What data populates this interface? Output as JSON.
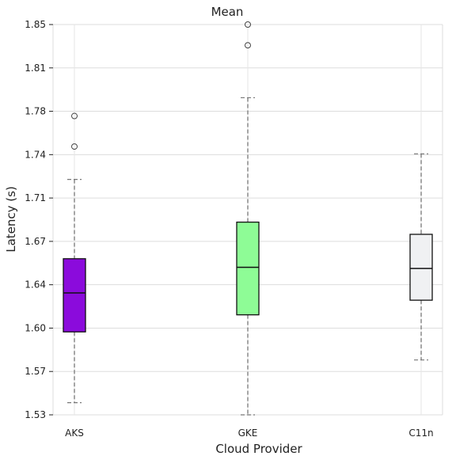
{
  "chart_data": {
    "type": "box",
    "title": "Mean",
    "xlabel": "Cloud Provider",
    "ylabel": "Latency (s)",
    "ylim": [
      1.53,
      1.85
    ],
    "yticks": [
      "1.53",
      "1.57",
      "1.60",
      "1.64",
      "1.67",
      "1.71",
      "1.74",
      "1.78",
      "1.81",
      "1.85"
    ],
    "categories": [
      "AKS",
      "GKE",
      "C11n"
    ],
    "grid": true,
    "boxes": [
      {
        "name": "AKS",
        "color": "#8b0bdc",
        "whisker_low": 1.54,
        "q1": 1.598,
        "median": 1.63,
        "q3": 1.658,
        "whisker_high": 1.723,
        "outliers": [
          1.75,
          1.775
        ]
      },
      {
        "name": "GKE",
        "color": "#8efc96",
        "whisker_low": 1.53,
        "q1": 1.612,
        "median": 1.651,
        "q3": 1.688,
        "whisker_high": 1.79,
        "outliers": [
          1.833,
          1.85
        ]
      },
      {
        "name": "C11n",
        "color": "#f0f1f3",
        "whisker_low": 1.575,
        "q1": 1.624,
        "median": 1.65,
        "q3": 1.678,
        "whisker_high": 1.744,
        "outliers": []
      }
    ]
  }
}
